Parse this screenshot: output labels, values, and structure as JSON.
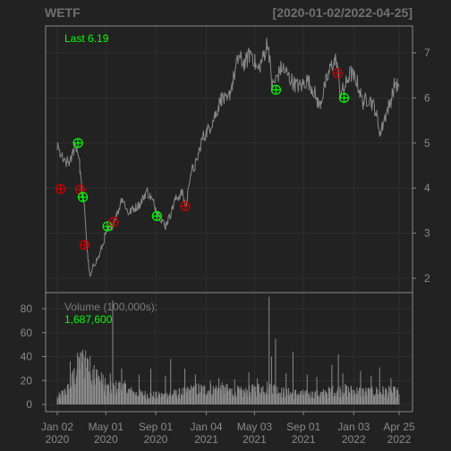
{
  "header": {
    "symbol": "WETF",
    "range": "[2020-01-02/2022-04-25]"
  },
  "colors": {
    "background": "#222222",
    "panel_border": "#888888",
    "grid": "#2e2e2e",
    "price_line": "#888888",
    "volume_bars": "#8a8a8a",
    "buy_marker": "#00ff00",
    "sell_marker": "#cc0000",
    "legend_text_price": "#00ff00",
    "legend_text_volume_label": "#7a7a7a"
  },
  "chart_data": [
    {
      "type": "line",
      "title": "WETF",
      "subtitle": "[2020-01-02/2022-04-25]",
      "legend": {
        "label": "Last",
        "value": "6.19",
        "position": "top-left"
      },
      "ylim": [
        1.6,
        7.8
      ],
      "y_ticks": [
        2,
        3,
        4,
        5,
        6,
        7
      ],
      "y_axis_side": "right",
      "grid": true,
      "x_range": [
        "2020-01-02",
        "2022-04-25"
      ],
      "x_tick_labels": [
        {
          "date": "2020-01-02",
          "line1": "Jan 02",
          "line2": "2020"
        },
        {
          "date": "2020-05-01",
          "line1": "May 01",
          "line2": "2020"
        },
        {
          "date": "2020-09-01",
          "line1": "Sep 01",
          "line2": "2020"
        },
        {
          "date": "2021-01-04",
          "line1": "Jan 04",
          "line2": "2021"
        },
        {
          "date": "2021-05-03",
          "line1": "May 03",
          "line2": "2021"
        },
        {
          "date": "2021-09-01",
          "line1": "Sep 01",
          "line2": "2021"
        },
        {
          "date": "2022-01-03",
          "line1": "Jan 03",
          "line2": "2022"
        },
        {
          "date": "2022-04-25",
          "line1": "Apr 25",
          "line2": "2022"
        }
      ],
      "series": [
        {
          "name": "Close",
          "points": [
            [
              "2020-01-02",
              4.9
            ],
            [
              "2020-01-20",
              4.55
            ],
            [
              "2020-02-05",
              4.6
            ],
            [
              "2020-02-15",
              5.0
            ],
            [
              "2020-02-24",
              4.75
            ],
            [
              "2020-03-03",
              3.9
            ],
            [
              "2020-03-10",
              3.5
            ],
            [
              "2020-03-16",
              2.6
            ],
            [
              "2020-03-23",
              2.0
            ],
            [
              "2020-04-01",
              2.3
            ],
            [
              "2020-04-15",
              2.5
            ],
            [
              "2020-05-01",
              3.0
            ],
            [
              "2020-05-15",
              3.15
            ],
            [
              "2020-06-01",
              3.5
            ],
            [
              "2020-06-10",
              3.8
            ],
            [
              "2020-06-25",
              3.45
            ],
            [
              "2020-07-10",
              3.55
            ],
            [
              "2020-07-25",
              3.65
            ],
            [
              "2020-08-10",
              3.95
            ],
            [
              "2020-08-25",
              3.7
            ],
            [
              "2020-09-10",
              3.4
            ],
            [
              "2020-09-24",
              3.15
            ],
            [
              "2020-10-05",
              3.35
            ],
            [
              "2020-10-20",
              3.75
            ],
            [
              "2020-11-05",
              3.9
            ],
            [
              "2020-11-15",
              3.55
            ],
            [
              "2020-11-25",
              4.3
            ],
            [
              "2020-12-10",
              4.55
            ],
            [
              "2020-12-25",
              5.1
            ],
            [
              "2021-01-10",
              5.3
            ],
            [
              "2021-01-25",
              5.6
            ],
            [
              "2021-02-10",
              6.0
            ],
            [
              "2021-02-25",
              5.9
            ],
            [
              "2021-03-10",
              6.35
            ],
            [
              "2021-03-25",
              6.9
            ],
            [
              "2021-04-10",
              6.75
            ],
            [
              "2021-04-25",
              7.05
            ],
            [
              "2021-05-10",
              6.6
            ],
            [
              "2021-05-25",
              6.9
            ],
            [
              "2021-06-05",
              7.3
            ],
            [
              "2021-06-15",
              6.25
            ],
            [
              "2021-06-25",
              6.4
            ],
            [
              "2021-07-10",
              6.7
            ],
            [
              "2021-07-25",
              6.5
            ],
            [
              "2021-08-10",
              6.3
            ],
            [
              "2021-08-25",
              6.25
            ],
            [
              "2021-09-10",
              6.4
            ],
            [
              "2021-09-25",
              6.2
            ],
            [
              "2021-10-10",
              5.8
            ],
            [
              "2021-10-25",
              6.3
            ],
            [
              "2021-11-10",
              6.75
            ],
            [
              "2021-11-22",
              6.85
            ],
            [
              "2021-11-30",
              6.1
            ],
            [
              "2021-12-10",
              6.2
            ],
            [
              "2021-12-25",
              6.55
            ],
            [
              "2022-01-10",
              6.4
            ],
            [
              "2022-01-25",
              5.9
            ],
            [
              "2022-02-10",
              6.0
            ],
            [
              "2022-02-25",
              5.75
            ],
            [
              "2022-03-10",
              5.2
            ],
            [
              "2022-03-20",
              5.55
            ],
            [
              "2022-04-05",
              5.95
            ],
            [
              "2022-04-15",
              6.35
            ],
            [
              "2022-04-25",
              6.19
            ]
          ]
        }
      ],
      "markers": [
        {
          "type": "sell",
          "date": "2020-01-10",
          "price": 3.98
        },
        {
          "type": "buy",
          "date": "2020-02-22",
          "price": 5.0
        },
        {
          "type": "sell",
          "date": "2020-02-27",
          "price": 3.97
        },
        {
          "type": "buy",
          "date": "2020-03-05",
          "price": 3.8
        },
        {
          "type": "sell",
          "date": "2020-03-09",
          "price": 2.74
        },
        {
          "type": "buy",
          "date": "2020-05-05",
          "price": 3.15
        },
        {
          "type": "sell",
          "date": "2020-05-20",
          "price": 3.25
        },
        {
          "type": "buy",
          "date": "2020-09-04",
          "price": 3.38
        },
        {
          "type": "sell",
          "date": "2020-11-13",
          "price": 3.6
        },
        {
          "type": "buy",
          "date": "2021-06-25",
          "price": 6.18
        },
        {
          "type": "sell",
          "date": "2021-11-24",
          "price": 6.55
        },
        {
          "type": "buy",
          "date": "2021-12-10",
          "price": 6.0
        }
      ]
    },
    {
      "type": "bar",
      "title": "Volume (100,000s):",
      "last_value": "1,687,600",
      "ylim": [
        0,
        90
      ],
      "y_ticks": [
        0,
        20,
        40,
        60,
        80
      ],
      "y_axis_side": "left",
      "grid": true,
      "volume_profile": [
        [
          "2020-01-02",
          6
        ],
        [
          "2020-02-01",
          15
        ],
        [
          "2020-02-20",
          32
        ],
        [
          "2020-03-10",
          40
        ],
        [
          "2020-03-25",
          30
        ],
        [
          "2020-04-15",
          22
        ],
        [
          "2020-05-10",
          14
        ],
        [
          "2020-06-10",
          16
        ],
        [
          "2020-07-10",
          10
        ],
        [
          "2020-08-10",
          9
        ],
        [
          "2020-09-10",
          8
        ],
        [
          "2020-10-10",
          9
        ],
        [
          "2020-11-10",
          11
        ],
        [
          "2020-12-10",
          14
        ],
        [
          "2021-01-10",
          13
        ],
        [
          "2021-02-10",
          14
        ],
        [
          "2021-03-10",
          12
        ],
        [
          "2021-04-10",
          11
        ],
        [
          "2021-05-10",
          14
        ],
        [
          "2021-06-10",
          16
        ],
        [
          "2021-07-10",
          11
        ],
        [
          "2021-08-10",
          10
        ],
        [
          "2021-09-10",
          9
        ],
        [
          "2021-10-10",
          9
        ],
        [
          "2021-11-10",
          12
        ],
        [
          "2021-12-10",
          13
        ],
        [
          "2022-01-10",
          12
        ],
        [
          "2022-02-10",
          11
        ],
        [
          "2022-03-10",
          12
        ],
        [
          "2022-04-25",
          11
        ]
      ],
      "spikes": [
        [
          "2020-01-05",
          12
        ],
        [
          "2020-02-03",
          36
        ],
        [
          "2020-02-24",
          40
        ],
        [
          "2020-03-12",
          45
        ],
        [
          "2020-03-18",
          38
        ],
        [
          "2020-04-02",
          33
        ],
        [
          "2020-04-20",
          27
        ],
        [
          "2020-05-12",
          26
        ],
        [
          "2020-05-18",
          87
        ],
        [
          "2020-06-09",
          30
        ],
        [
          "2020-07-22",
          25
        ],
        [
          "2020-08-20",
          30
        ],
        [
          "2020-09-25",
          24
        ],
        [
          "2020-10-08",
          38
        ],
        [
          "2020-11-12",
          30
        ],
        [
          "2020-12-08",
          25
        ],
        [
          "2021-01-14",
          20
        ],
        [
          "2021-02-04",
          22
        ],
        [
          "2021-03-15",
          21
        ],
        [
          "2021-04-19",
          27
        ],
        [
          "2021-05-10",
          22
        ],
        [
          "2021-06-08",
          90
        ],
        [
          "2021-06-14",
          40
        ],
        [
          "2021-06-24",
          55
        ],
        [
          "2021-07-20",
          26
        ],
        [
          "2021-08-06",
          44
        ],
        [
          "2021-09-10",
          25
        ],
        [
          "2021-10-04",
          23
        ],
        [
          "2021-11-10",
          33
        ],
        [
          "2021-11-26",
          42
        ],
        [
          "2021-12-07",
          26
        ],
        [
          "2022-01-20",
          28
        ],
        [
          "2022-02-15",
          24
        ],
        [
          "2022-03-08",
          31
        ],
        [
          "2022-04-05",
          22
        ]
      ]
    }
  ]
}
